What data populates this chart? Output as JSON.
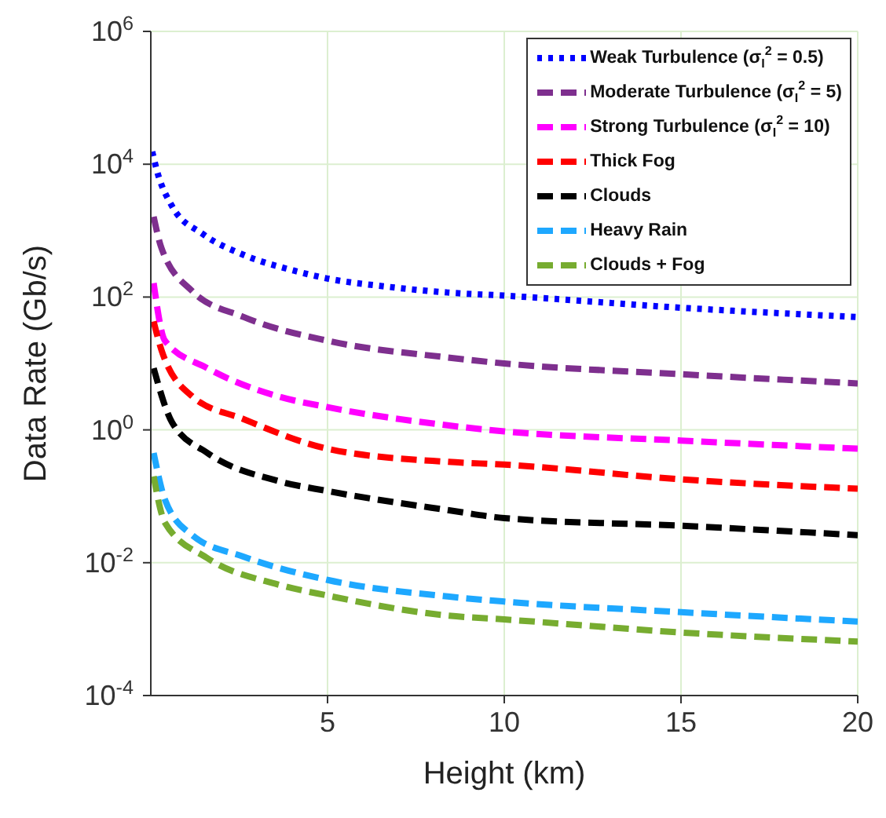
{
  "chart_data": {
    "type": "line",
    "xlabel": "Height (km)",
    "ylabel": "Data Rate (Gb/s)",
    "log": "y",
    "xlim": [
      0,
      20
    ],
    "xticks": [
      5,
      10,
      15,
      20
    ],
    "ylim": [
      0.0001,
      1000000
    ],
    "yticks": [
      {
        "value": 0.0001,
        "label": "10$^{-4}$"
      },
      {
        "value": 0.01,
        "label": "10$^{-2}$"
      },
      {
        "value": 1,
        "label": "10$^{0}$"
      },
      {
        "value": 100,
        "label": "10$^{2}$"
      },
      {
        "value": 10000,
        "label": "10$^{4}$"
      },
      {
        "value": 1000000,
        "label": "10$^{6}$"
      }
    ],
    "grid": true,
    "legend": "top right",
    "series": [
      {
        "name": "Weak Turbulence (σ$_{I}$$^{2}$ = 0.5)",
        "color": "#0000ff",
        "line_style": "dotted",
        "x": [
          0.04,
          0.17,
          0.6,
          1.47,
          2.63,
          4.05,
          5,
          6.6,
          8.4,
          10,
          15,
          20
        ],
        "values": [
          15500,
          8100,
          2340,
          890,
          430,
          250,
          190,
          145,
          117,
          105,
          69,
          50
        ]
      },
      {
        "name": "Moderate Turbulence (σ$_{I}$$^{2}$ = 5)",
        "color": "#7e2f8e",
        "line_style": "dashed",
        "x": [
          0.08,
          0.3,
          1.17,
          2.63,
          5,
          8.4,
          10,
          15,
          20
        ],
        "values": [
          1620,
          550,
          123,
          50,
          22,
          12.3,
          10,
          6.9,
          5.0
        ]
      },
      {
        "name": "Strong Turbulence (σ$_{I}$$^{2}$ = 10)",
        "color": "#ff00ff",
        "line_style": "dashed",
        "x": [
          0.08,
          0.4,
          1.6,
          3.6,
          5,
          8.4,
          10,
          15,
          20
        ],
        "values": [
          162,
          22,
          8.5,
          3.2,
          2.2,
          1.17,
          0.95,
          0.69,
          0.52
        ]
      },
      {
        "name": "Thick Fog",
        "color": "#ff0000",
        "line_style": "dashed",
        "x": [
          0.08,
          0.3,
          1.17,
          2.63,
          5,
          8.4,
          10,
          15,
          20
        ],
        "values": [
          43,
          16,
          3.2,
          1.45,
          0.52,
          0.33,
          0.3,
          0.18,
          0.13
        ]
      },
      {
        "name": "Clouds",
        "color": "#000000",
        "line_style": "dashed",
        "x": [
          0.08,
          0.6,
          1.6,
          3.6,
          5,
          8.4,
          10,
          15,
          20
        ],
        "values": [
          8.5,
          1.3,
          0.45,
          0.17,
          0.12,
          0.062,
          0.047,
          0.036,
          0.026
        ]
      },
      {
        "name": "Heavy Rain",
        "color": "#1ea8ff",
        "line_style": "dashed",
        "x": [
          0.08,
          0.4,
          1.17,
          2.63,
          5,
          8.4,
          10,
          15,
          20
        ],
        "values": [
          0.45,
          0.089,
          0.026,
          0.0123,
          0.0055,
          0.0031,
          0.0026,
          0.0018,
          0.0013
        ]
      },
      {
        "name": "Clouds + Fog",
        "color": "#77ac30",
        "line_style": "dashed",
        "x": [
          0.08,
          0.4,
          1.6,
          3.6,
          5,
          8.4,
          10,
          15,
          20
        ],
        "values": [
          0.2,
          0.04,
          0.0117,
          0.0047,
          0.0032,
          0.0016,
          0.0014,
          0.00089,
          0.00065
        ]
      }
    ]
  }
}
